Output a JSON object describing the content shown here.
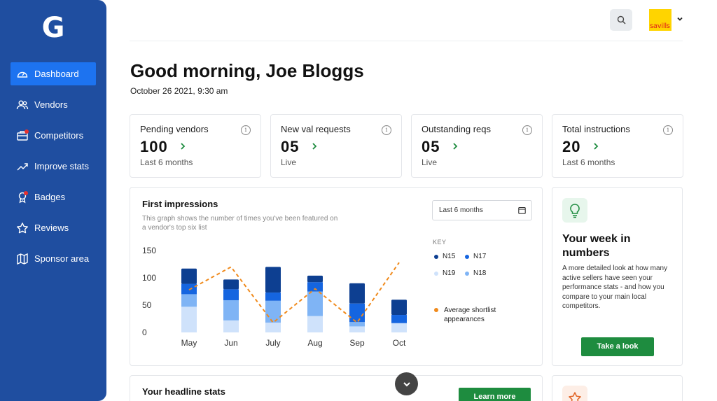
{
  "app": {
    "logo_letter": "G"
  },
  "sidebar": {
    "items": [
      {
        "label": "Dashboard",
        "icon": "gauge-icon",
        "active": true
      },
      {
        "label": "Vendors",
        "icon": "users-icon"
      },
      {
        "label": "Competitors",
        "icon": "competitors-icon",
        "badge": true
      },
      {
        "label": "Improve stats",
        "icon": "trending-up-icon"
      },
      {
        "label": "Badges",
        "icon": "badge-icon",
        "badge": true
      },
      {
        "label": "Reviews",
        "icon": "star-icon"
      },
      {
        "label": "Sponsor area",
        "icon": "map-icon"
      }
    ]
  },
  "header": {
    "brand_text": "savills"
  },
  "greeting": "Good morning, Joe Bloggs",
  "date": "October 26 2021, 9:30 am",
  "stats": [
    {
      "title": "Pending vendors",
      "value": "100",
      "sub": "Last 6 months"
    },
    {
      "title": "New val requests",
      "value": "05",
      "sub": "Live"
    },
    {
      "title": "Outstanding reqs",
      "value": "05",
      "sub": "Live"
    },
    {
      "title": "Total instructions",
      "value": "20",
      "sub": "Last 6 months"
    }
  ],
  "first_impressions": {
    "title": "First impressions",
    "description": "This graph shows the number of times you've been featured on a vendor's top six list",
    "period": "Last 6 months",
    "key_label": "KEY",
    "legend_avg": "Average shortlist appearances"
  },
  "chart_data": {
    "type": "bar",
    "stacked": true,
    "categories": [
      "May",
      "Jun",
      "July",
      "Aug",
      "Sep",
      "Oct"
    ],
    "ylim": [
      0,
      150
    ],
    "yticks": [
      0,
      50,
      100,
      150
    ],
    "series": [
      {
        "name": "N18",
        "color": "#cfe2fb",
        "values": [
          47,
          22,
          18,
          30,
          11,
          17
        ]
      },
      {
        "name": "N19",
        "color": "#7fb4f5",
        "values": [
          23,
          37,
          40,
          45,
          8,
          0
        ]
      },
      {
        "name": "N17",
        "color": "#1565e0",
        "values": [
          19,
          20,
          15,
          17,
          34,
          15
        ]
      },
      {
        "name": "N15",
        "color": "#0d3f91",
        "values": [
          28,
          18,
          47,
          12,
          37,
          28
        ]
      }
    ],
    "line": {
      "name": "Average shortlist appearances",
      "color": "#f08a1c",
      "values": [
        78,
        120,
        18,
        80,
        18,
        128
      ]
    }
  },
  "week": {
    "title": "Your week in numbers",
    "description": "A more detailed look at how many active sellers have seen your performance stats - and how you compare to your main local competitors.",
    "button": "Take a look"
  },
  "headline": {
    "title": "Your headline stats",
    "button": "Learn more"
  }
}
